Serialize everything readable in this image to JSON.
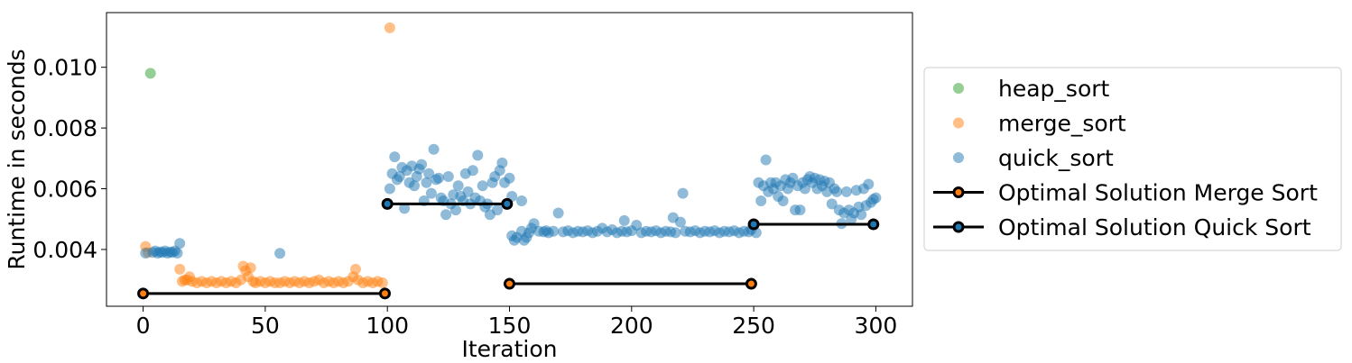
{
  "chart_data": {
    "type": "scatter",
    "title": "",
    "xlabel": "Iteration",
    "ylabel": "Runtime in seconds",
    "xlim": [
      -15,
      315
    ],
    "ylim": [
      0.00213,
      0.0118
    ],
    "xticks": [
      0,
      50,
      100,
      150,
      200,
      250,
      300
    ],
    "yticks": [
      0.004,
      0.006,
      0.008,
      0.01
    ],
    "ytick_labels": [
      "0.004",
      "0.006",
      "0.008",
      "0.010"
    ],
    "grid": false,
    "legend_position": "right-outside",
    "series": [
      {
        "name": "heap_sort",
        "kind": "scatter",
        "color": "#2ca02c",
        "points": [
          [
            3,
            0.0098
          ]
        ]
      },
      {
        "name": "merge_sort",
        "kind": "scatter",
        "color": "#ff7f0e",
        "points": [
          [
            1,
            0.0041
          ],
          [
            2,
            0.0039
          ],
          [
            15,
            0.00335
          ],
          [
            16,
            0.00295
          ],
          [
            17,
            0.003
          ],
          [
            18,
            0.003
          ],
          [
            19,
            0.0031
          ],
          [
            20,
            0.00295
          ],
          [
            22,
            0.0029
          ],
          [
            24,
            0.00295
          ],
          [
            26,
            0.0029
          ],
          [
            28,
            0.00295
          ],
          [
            30,
            0.0029
          ],
          [
            32,
            0.00295
          ],
          [
            34,
            0.0029
          ],
          [
            36,
            0.00295
          ],
          [
            38,
            0.0029
          ],
          [
            40,
            0.003
          ],
          [
            41,
            0.00345
          ],
          [
            42,
            0.0033
          ],
          [
            43,
            0.0031
          ],
          [
            44,
            0.0034
          ],
          [
            45,
            0.00295
          ],
          [
            46,
            0.0029
          ],
          [
            48,
            0.00295
          ],
          [
            50,
            0.0029
          ],
          [
            52,
            0.00295
          ],
          [
            54,
            0.0029
          ],
          [
            56,
            0.0029
          ],
          [
            58,
            0.00295
          ],
          [
            60,
            0.0029
          ],
          [
            62,
            0.00295
          ],
          [
            64,
            0.0029
          ],
          [
            66,
            0.00295
          ],
          [
            68,
            0.0029
          ],
          [
            70,
            0.00295
          ],
          [
            72,
            0.003
          ],
          [
            74,
            0.0029
          ],
          [
            76,
            0.00295
          ],
          [
            78,
            0.0029
          ],
          [
            80,
            0.00295
          ],
          [
            82,
            0.0029
          ],
          [
            84,
            0.00295
          ],
          [
            86,
            0.0031
          ],
          [
            87,
            0.00335
          ],
          [
            88,
            0.003
          ],
          [
            90,
            0.0029
          ],
          [
            92,
            0.00295
          ],
          [
            94,
            0.0029
          ],
          [
            96,
            0.00295
          ],
          [
            98,
            0.0029
          ],
          [
            101,
            0.0113
          ]
        ]
      },
      {
        "name": "quick_sort",
        "kind": "scatter",
        "color": "#1f77b4",
        "points": [
          [
            1,
            0.00388
          ],
          [
            4,
            0.0039
          ],
          [
            5,
            0.00395
          ],
          [
            6,
            0.00388
          ],
          [
            7,
            0.00392
          ],
          [
            8,
            0.0039
          ],
          [
            9,
            0.00395
          ],
          [
            10,
            0.00388
          ],
          [
            11,
            0.00392
          ],
          [
            12,
            0.0039
          ],
          [
            13,
            0.00395
          ],
          [
            14,
            0.00388
          ],
          [
            15,
            0.0042
          ],
          [
            56,
            0.00387
          ],
          [
            101,
            0.006
          ],
          [
            102,
            0.0065
          ],
          [
            103,
            0.00705
          ],
          [
            104,
            0.0063
          ],
          [
            105,
            0.0064
          ],
          [
            106,
            0.0067
          ],
          [
            107,
            0.00535
          ],
          [
            108,
            0.0066
          ],
          [
            109,
            0.0062
          ],
          [
            110,
            0.00675
          ],
          [
            111,
            0.0061
          ],
          [
            112,
            0.0064
          ],
          [
            113,
            0.00665
          ],
          [
            114,
            0.0068
          ],
          [
            115,
            0.0056
          ],
          [
            116,
            0.0062
          ],
          [
            117,
            0.0065
          ],
          [
            118,
            0.00585
          ],
          [
            119,
            0.0073
          ],
          [
            120,
            0.0063
          ],
          [
            121,
            0.00635
          ],
          [
            122,
            0.0057
          ],
          [
            123,
            0.0056
          ],
          [
            124,
            0.00515
          ],
          [
            125,
            0.0064
          ],
          [
            126,
            0.0055
          ],
          [
            127,
            0.0058
          ],
          [
            128,
            0.0053
          ],
          [
            129,
            0.0061
          ],
          [
            130,
            0.00575
          ],
          [
            131,
            0.0056
          ],
          [
            132,
            0.0065
          ],
          [
            133,
            0.0059
          ],
          [
            134,
            0.0055
          ],
          [
            135,
            0.0066
          ],
          [
            136,
            0.0057
          ],
          [
            137,
            0.0071
          ],
          [
            138,
            0.0056
          ],
          [
            139,
            0.0061
          ],
          [
            140,
            0.0054
          ],
          [
            141,
            0.0055
          ],
          [
            142,
            0.00515
          ],
          [
            143,
            0.0062
          ],
          [
            144,
            0.0064
          ],
          [
            145,
            0.0053
          ],
          [
            146,
            0.0066
          ],
          [
            147,
            0.00685
          ],
          [
            148,
            0.0062
          ],
          [
            149,
            0.0055
          ],
          [
            150,
            0.00635
          ],
          [
            151,
            0.00575
          ],
          [
            155,
            0.0056
          ],
          [
            151,
            0.00445
          ],
          [
            152,
            0.0043
          ],
          [
            153,
            0.0044
          ],
          [
            155,
            0.0046
          ],
          [
            156,
            0.0043
          ],
          [
            157,
            0.0044
          ],
          [
            158,
            0.00455
          ],
          [
            159,
            0.0047
          ],
          [
            160,
            0.00485
          ],
          [
            162,
            0.0046
          ],
          [
            164,
            0.00458
          ],
          [
            165,
            0.00462
          ],
          [
            166,
            0.00455
          ],
          [
            168,
            0.0046
          ],
          [
            170,
            0.0052
          ],
          [
            172,
            0.00458
          ],
          [
            174,
            0.00462
          ],
          [
            176,
            0.00455
          ],
          [
            178,
            0.0046
          ],
          [
            180,
            0.00458
          ],
          [
            182,
            0.00462
          ],
          [
            184,
            0.00455
          ],
          [
            186,
            0.0046
          ],
          [
            188,
            0.0047
          ],
          [
            190,
            0.00458
          ],
          [
            192,
            0.00465
          ],
          [
            194,
            0.00455
          ],
          [
            196,
            0.0046
          ],
          [
            197,
            0.00495
          ],
          [
            198,
            0.00458
          ],
          [
            200,
            0.00462
          ],
          [
            202,
            0.0048
          ],
          [
            204,
            0.00455
          ],
          [
            206,
            0.0046
          ],
          [
            208,
            0.00458
          ],
          [
            210,
            0.00462
          ],
          [
            212,
            0.00455
          ],
          [
            214,
            0.0046
          ],
          [
            216,
            0.00458
          ],
          [
            217,
            0.00505
          ],
          [
            218,
            0.00455
          ],
          [
            220,
            0.0049
          ],
          [
            221,
            0.00585
          ],
          [
            222,
            0.0046
          ],
          [
            224,
            0.00458
          ],
          [
            226,
            0.00462
          ],
          [
            228,
            0.00455
          ],
          [
            230,
            0.0046
          ],
          [
            232,
            0.00458
          ],
          [
            234,
            0.00462
          ],
          [
            236,
            0.00455
          ],
          [
            238,
            0.0046
          ],
          [
            240,
            0.00458
          ],
          [
            242,
            0.00462
          ],
          [
            244,
            0.00455
          ],
          [
            246,
            0.0046
          ],
          [
            248,
            0.00458
          ],
          [
            249,
            0.00465
          ],
          [
            250,
            0.0048
          ],
          [
            251,
            0.00455
          ],
          [
            252,
            0.0062
          ],
          [
            253,
            0.0056
          ],
          [
            254,
            0.0061
          ],
          [
            255,
            0.00695
          ],
          [
            256,
            0.0059
          ],
          [
            257,
            0.0062
          ],
          [
            258,
            0.006
          ],
          [
            259,
            0.0062
          ],
          [
            260,
            0.00575
          ],
          [
            261,
            0.0061
          ],
          [
            262,
            0.0056
          ],
          [
            263,
            0.0063
          ],
          [
            264,
            0.006
          ],
          [
            265,
            0.0062
          ],
          [
            266,
            0.00635
          ],
          [
            267,
            0.0053
          ],
          [
            268,
            0.0061
          ],
          [
            269,
            0.0053
          ],
          [
            270,
            0.0062
          ],
          [
            271,
            0.006
          ],
          [
            272,
            0.0063
          ],
          [
            273,
            0.0064
          ],
          [
            274,
            0.0062
          ],
          [
            275,
            0.00635
          ],
          [
            276,
            0.006
          ],
          [
            277,
            0.0063
          ],
          [
            278,
            0.0061
          ],
          [
            279,
            0.00625
          ],
          [
            280,
            0.0059
          ],
          [
            281,
            0.0062
          ],
          [
            282,
            0.0055
          ],
          [
            283,
            0.006
          ],
          [
            284,
            0.0059
          ],
          [
            285,
            0.0053
          ],
          [
            286,
            0.00485
          ],
          [
            287,
            0.0052
          ],
          [
            288,
            0.0059
          ],
          [
            289,
            0.0053
          ],
          [
            290,
            0.005
          ],
          [
            291,
            0.0052
          ],
          [
            292,
            0.00595
          ],
          [
            293,
            0.0054
          ],
          [
            294,
            0.00515
          ],
          [
            295,
            0.006
          ],
          [
            296,
            0.00545
          ],
          [
            297,
            0.00615
          ],
          [
            298,
            0.00555
          ],
          [
            299,
            0.00565
          ],
          [
            300,
            0.0057
          ]
        ]
      },
      {
        "name": "Optimal Solution Merge Sort",
        "kind": "line",
        "color": "#ff7f0e",
        "segments": [
          [
            [
              0,
              0.00255
            ],
            [
              99,
              0.00255
            ]
          ],
          [
            [
              150,
              0.00287
            ],
            [
              249,
              0.00287
            ]
          ]
        ]
      },
      {
        "name": "Optimal Solution Quick Sort",
        "kind": "line",
        "color": "#1f77b4",
        "segments": [
          [
            [
              100,
              0.0055
            ],
            [
              149,
              0.0055
            ]
          ],
          [
            [
              250,
              0.00483
            ],
            [
              299,
              0.00483
            ]
          ]
        ]
      }
    ]
  }
}
